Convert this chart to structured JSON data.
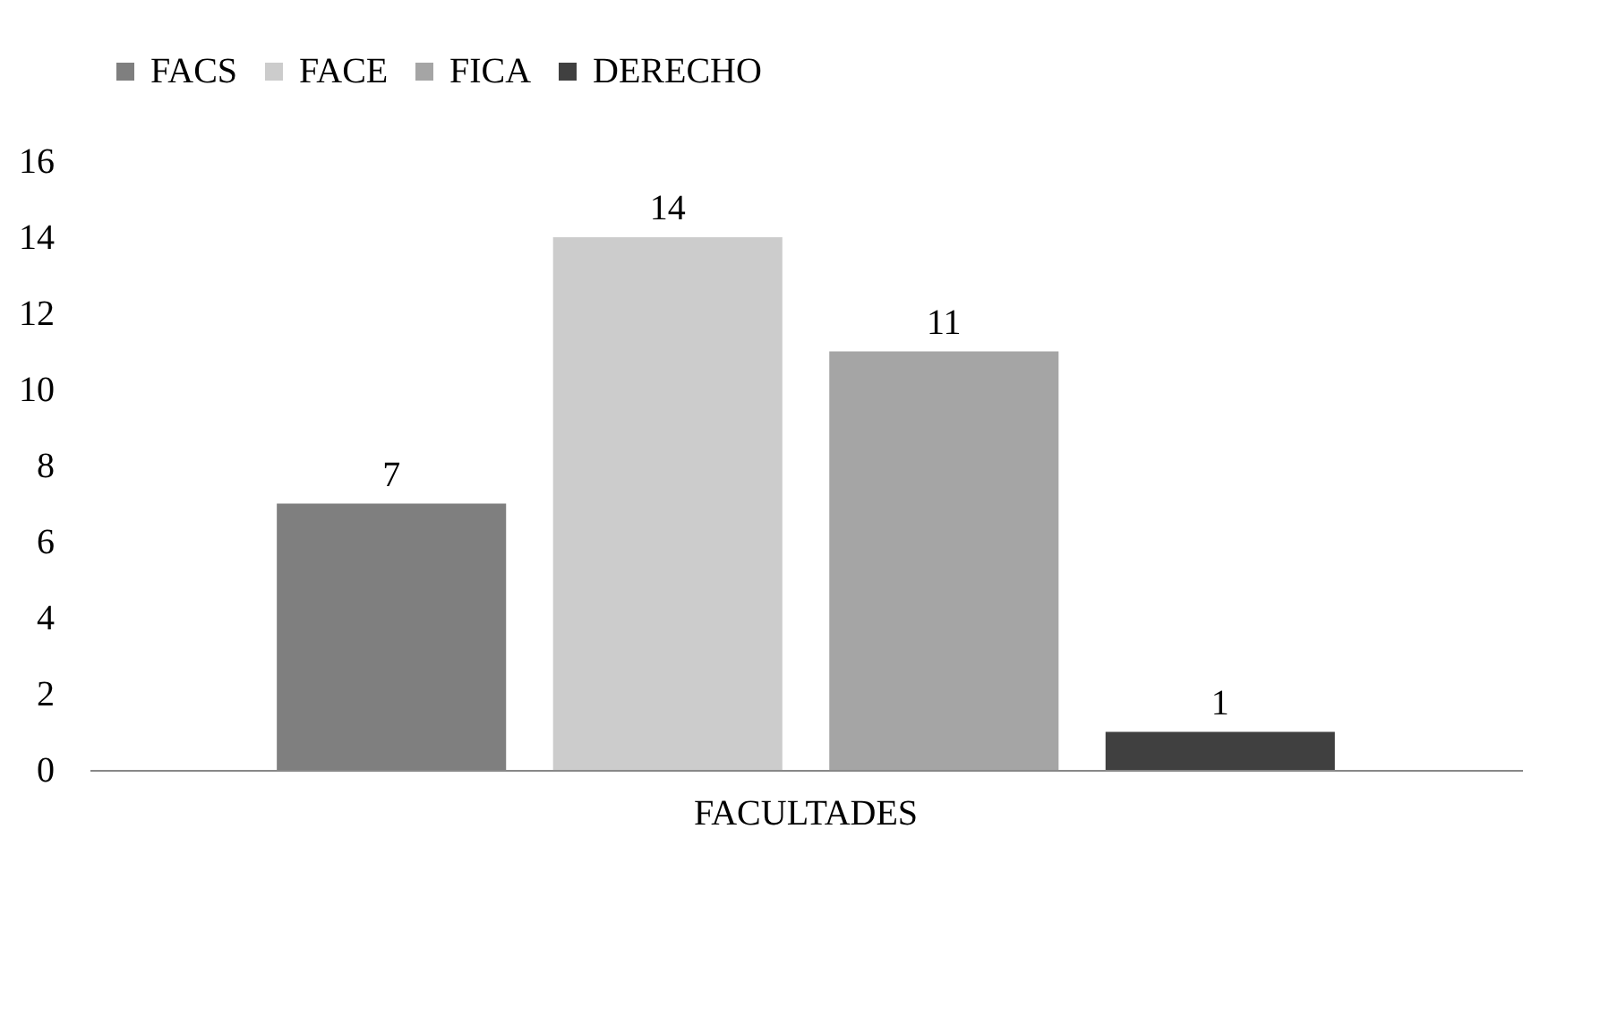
{
  "chart_data": {
    "type": "bar",
    "categories": [
      "FACULTADES"
    ],
    "series": [
      {
        "name": "FACS",
        "color": "#7f7f7f",
        "values": [
          7
        ]
      },
      {
        "name": "FACE",
        "color": "#cccccc",
        "values": [
          14
        ]
      },
      {
        "name": "FICA",
        "color": "#a5a5a5",
        "values": [
          11
        ]
      },
      {
        "name": "DERECHO",
        "color": "#404040",
        "values": [
          1
        ]
      }
    ],
    "ylim": [
      0,
      16
    ],
    "yticks": [
      0,
      2,
      4,
      6,
      8,
      10,
      12,
      14,
      16
    ],
    "data_labels": true,
    "legend": "top",
    "grid": false
  }
}
